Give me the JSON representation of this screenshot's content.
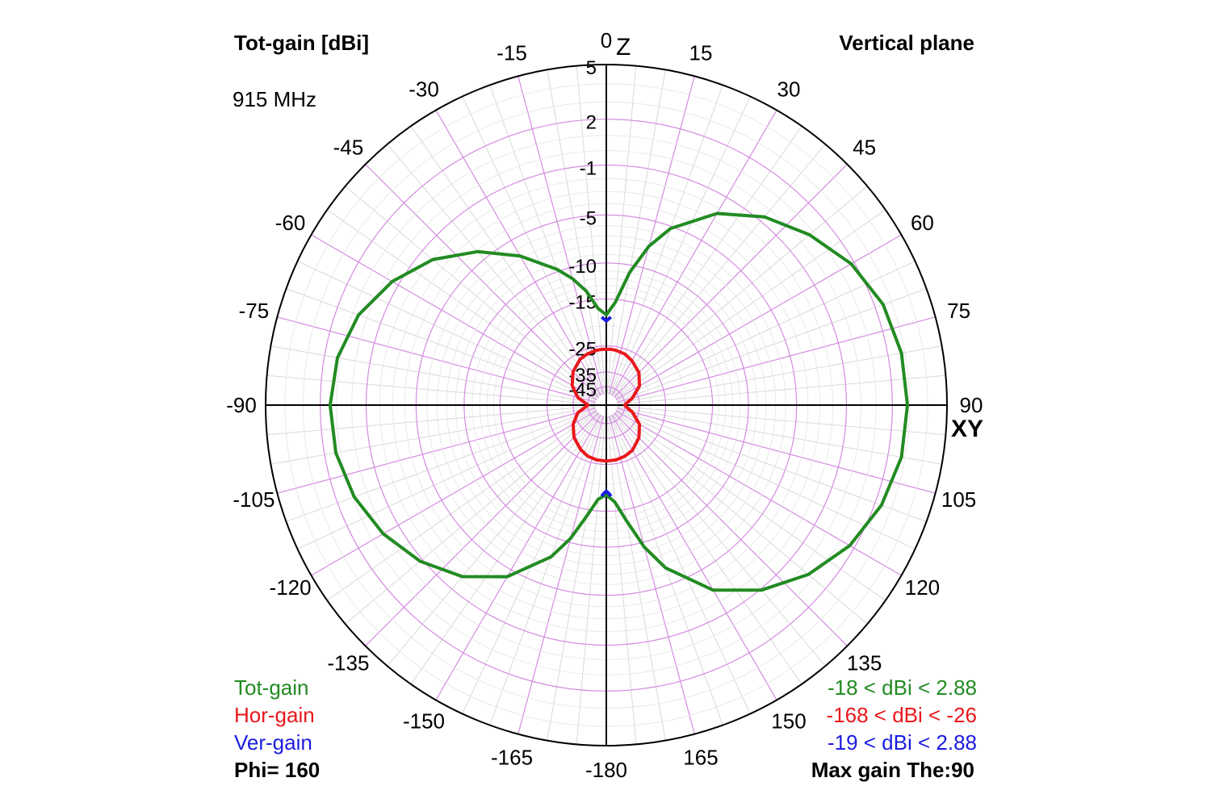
{
  "header": {
    "left_title": "Tot-gain [dBi]",
    "frequency": "915 MHz",
    "right_title": "Vertical plane"
  },
  "axes": {
    "top_label": "Z",
    "right_label": "XY"
  },
  "legend": {
    "entries": [
      {
        "label": "Tot-gain",
        "range": "-18 < dBi < 2.88",
        "color": "#228b22"
      },
      {
        "label": "Hor-gain",
        "range": "-168 < dBi < -26",
        "color": "#e8181c"
      },
      {
        "label": "Ver-gain",
        "range": "-19 < dBi < 2.88",
        "color": "#1c1ce0"
      }
    ],
    "phi": "Phi= 160",
    "max_gain": "Max gain The:90"
  },
  "chart_data": {
    "type": "polar",
    "angular_ticks": [
      "0",
      "15",
      "30",
      "45",
      "60",
      "75",
      "90",
      "105",
      "120",
      "135",
      "150",
      "165",
      "-180",
      "165",
      "150",
      "135",
      "120",
      "105",
      "90",
      "75",
      "60",
      "45",
      "30",
      "15"
    ],
    "angular_tick_labels": [
      {
        "angle": 0,
        "text": "0"
      },
      {
        "angle": 15,
        "text": "15"
      },
      {
        "angle": 30,
        "text": "30"
      },
      {
        "angle": 45,
        "text": "45"
      },
      {
        "angle": 60,
        "text": "60"
      },
      {
        "angle": 75,
        "text": "75"
      },
      {
        "angle": 90,
        "text": "90"
      },
      {
        "angle": 105,
        "text": "105"
      },
      {
        "angle": 120,
        "text": "120"
      },
      {
        "angle": 135,
        "text": "135"
      },
      {
        "angle": 150,
        "text": "150"
      },
      {
        "angle": 165,
        "text": "165"
      },
      {
        "angle": 180,
        "text": "-180"
      },
      {
        "angle": -165,
        "text": "-165"
      },
      {
        "angle": -150,
        "text": "-150"
      },
      {
        "angle": -135,
        "text": "-135"
      },
      {
        "angle": -120,
        "text": "-120"
      },
      {
        "angle": -105,
        "text": "-105"
      },
      {
        "angle": -90,
        "text": "-90"
      },
      {
        "angle": -75,
        "text": "-75"
      },
      {
        "angle": -60,
        "text": "-60"
      },
      {
        "angle": -45,
        "text": "-45"
      },
      {
        "angle": -30,
        "text": "-30"
      },
      {
        "angle": -15,
        "text": "-15"
      }
    ],
    "radial_rings_db": [
      5,
      2,
      -1,
      -5,
      -10,
      -15,
      -25,
      -35,
      -45
    ],
    "radial_tick_labels": [
      "5",
      "2",
      "-1",
      "-5",
      "-10",
      "-15",
      "-25",
      "-35",
      "-45"
    ],
    "series": [
      {
        "name": "Tot-gain",
        "color": "#228b22",
        "theta_deg": [
          0,
          5,
          10,
          15,
          20,
          30,
          40,
          50,
          60,
          70,
          80,
          90,
          100,
          110,
          120,
          130,
          140,
          150,
          160,
          165,
          170,
          175,
          180,
          -175,
          -170,
          -165,
          -160,
          -150,
          -140,
          -130,
          -120,
          -110,
          -100,
          -90,
          -80,
          -70,
          -60,
          -50,
          -40,
          -30,
          -20,
          -15,
          -10,
          -5
        ],
        "gain_dbi": [
          -17.8,
          -15.5,
          -10.9,
          -7.5,
          -5.2,
          -2.4,
          -0.6,
          0.7,
          1.8,
          2.5,
          2.8,
          2.88,
          2.8,
          2.4,
          1.7,
          0.6,
          -0.9,
          -3.0,
          -6.6,
          -9.4,
          -13.2,
          -16.5,
          -17.9,
          -17.0,
          -14.0,
          -10.5,
          -7.8,
          -4.3,
          -2.2,
          -0.8,
          0.2,
          0.9,
          1.3,
          1.4,
          1.2,
          0.6,
          -0.5,
          -2.0,
          -4.1,
          -6.7,
          -9.7,
          -11.4,
          -13.5,
          -16.5
        ]
      },
      {
        "name": "Hor-gain",
        "color": "#e8181c",
        "theta_deg": [
          0,
          5,
          10,
          20,
          30,
          45,
          60,
          75,
          85,
          90,
          95,
          105,
          120,
          135,
          150,
          160,
          170,
          180,
          -170,
          -160,
          -150,
          -135,
          -120,
          -105,
          -95,
          -90,
          -85,
          -75,
          -60,
          -45,
          -30,
          -20,
          -10,
          -5
        ],
        "gain_dbi": [
          -26.0,
          -26.0,
          -26.1,
          -26.5,
          -27.5,
          -29.3,
          -32.5,
          -38.5,
          -43.5,
          -45,
          -43.5,
          -38.5,
          -32.5,
          -29.3,
          -27.2,
          -26.5,
          -26.1,
          -26.0,
          -26.1,
          -26.5,
          -27.5,
          -29.5,
          -32.5,
          -37.0,
          -43.0,
          -45,
          -43.0,
          -37.0,
          -32.0,
          -29.0,
          -27.0,
          -26.4,
          -26.1,
          -26.0
        ]
      },
      {
        "name": "Ver-gain",
        "color": "#1c1ce0",
        "theta_deg": [
          -3,
          -1.5,
          0,
          1.5,
          3
        ],
        "gain_dbi": [
          -18.2,
          -18.6,
          -19,
          -18.6,
          -18.2
        ],
        "theta_deg_b": [
          177,
          178.5,
          180,
          -178.5,
          -177
        ],
        "gain_dbi_b": [
          -17.6,
          -18.2,
          -18.6,
          -18.2,
          -17.6
        ]
      }
    ]
  }
}
